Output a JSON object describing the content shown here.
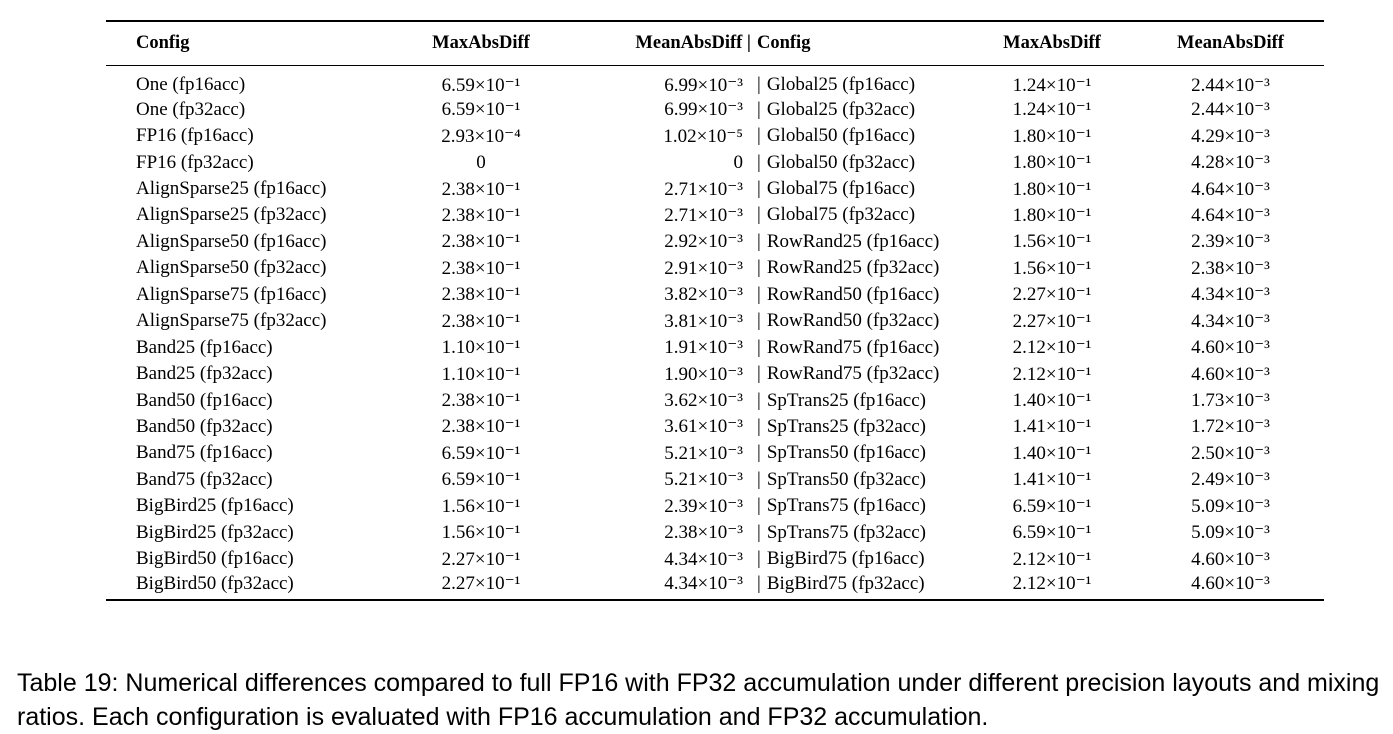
{
  "table": {
    "headers": [
      "Config",
      "MaxAbsDiff",
      "MeanAbsDiff",
      "Config",
      "MaxAbsDiff",
      "MeanAbsDiff"
    ],
    "separator": "|",
    "rows": [
      [
        "One (fp16acc)",
        "6.59×10⁻¹",
        "6.99×10⁻³",
        "Global25 (fp16acc)",
        "1.24×10⁻¹",
        "2.44×10⁻³"
      ],
      [
        "One (fp32acc)",
        "6.59×10⁻¹",
        "6.99×10⁻³",
        "Global25 (fp32acc)",
        "1.24×10⁻¹",
        "2.44×10⁻³"
      ],
      [
        "FP16 (fp16acc)",
        "2.93×10⁻⁴",
        "1.02×10⁻⁵",
        "Global50 (fp16acc)",
        "1.80×10⁻¹",
        "4.29×10⁻³"
      ],
      [
        "FP16 (fp32acc)",
        "0",
        "0",
        "Global50 (fp32acc)",
        "1.80×10⁻¹",
        "4.28×10⁻³"
      ],
      [
        "AlignSparse25 (fp16acc)",
        "2.38×10⁻¹",
        "2.71×10⁻³",
        "Global75 (fp16acc)",
        "1.80×10⁻¹",
        "4.64×10⁻³"
      ],
      [
        "AlignSparse25 (fp32acc)",
        "2.38×10⁻¹",
        "2.71×10⁻³",
        "Global75 (fp32acc)",
        "1.80×10⁻¹",
        "4.64×10⁻³"
      ],
      [
        "AlignSparse50 (fp16acc)",
        "2.38×10⁻¹",
        "2.92×10⁻³",
        "RowRand25 (fp16acc)",
        "1.56×10⁻¹",
        "2.39×10⁻³"
      ],
      [
        "AlignSparse50 (fp32acc)",
        "2.38×10⁻¹",
        "2.91×10⁻³",
        "RowRand25 (fp32acc)",
        "1.56×10⁻¹",
        "2.38×10⁻³"
      ],
      [
        "AlignSparse75 (fp16acc)",
        "2.38×10⁻¹",
        "3.82×10⁻³",
        "RowRand50 (fp16acc)",
        "2.27×10⁻¹",
        "4.34×10⁻³"
      ],
      [
        "AlignSparse75 (fp32acc)",
        "2.38×10⁻¹",
        "3.81×10⁻³",
        "RowRand50 (fp32acc)",
        "2.27×10⁻¹",
        "4.34×10⁻³"
      ],
      [
        "Band25 (fp16acc)",
        "1.10×10⁻¹",
        "1.91×10⁻³",
        "RowRand75 (fp16acc)",
        "2.12×10⁻¹",
        "4.60×10⁻³"
      ],
      [
        "Band25 (fp32acc)",
        "1.10×10⁻¹",
        "1.90×10⁻³",
        "RowRand75 (fp32acc)",
        "2.12×10⁻¹",
        "4.60×10⁻³"
      ],
      [
        "Band50 (fp16acc)",
        "2.38×10⁻¹",
        "3.62×10⁻³",
        "SpTrans25 (fp16acc)",
        "1.40×10⁻¹",
        "1.73×10⁻³"
      ],
      [
        "Band50 (fp32acc)",
        "2.38×10⁻¹",
        "3.61×10⁻³",
        "SpTrans25 (fp32acc)",
        "1.41×10⁻¹",
        "1.72×10⁻³"
      ],
      [
        "Band75 (fp16acc)",
        "6.59×10⁻¹",
        "5.21×10⁻³",
        "SpTrans50 (fp16acc)",
        "1.40×10⁻¹",
        "2.50×10⁻³"
      ],
      [
        "Band75 (fp32acc)",
        "6.59×10⁻¹",
        "5.21×10⁻³",
        "SpTrans50 (fp32acc)",
        "1.41×10⁻¹",
        "2.49×10⁻³"
      ],
      [
        "BigBird25 (fp16acc)",
        "1.56×10⁻¹",
        "2.39×10⁻³",
        "SpTrans75 (fp16acc)",
        "6.59×10⁻¹",
        "5.09×10⁻³"
      ],
      [
        "BigBird25 (fp32acc)",
        "1.56×10⁻¹",
        "2.38×10⁻³",
        "SpTrans75 (fp32acc)",
        "6.59×10⁻¹",
        "5.09×10⁻³"
      ],
      [
        "BigBird50 (fp16acc)",
        "2.27×10⁻¹",
        "4.34×10⁻³",
        "BigBird75 (fp16acc)",
        "2.12×10⁻¹",
        "4.60×10⁻³"
      ],
      [
        "BigBird50 (fp32acc)",
        "2.27×10⁻¹",
        "4.34×10⁻³",
        "BigBird75 (fp32acc)",
        "2.12×10⁻¹",
        "4.60×10⁻³"
      ]
    ]
  },
  "caption": "Table 19: Numerical differences compared to full FP16 with FP32 accumulation under different precision layouts and mixing ratios. Each configuration is evaluated with FP16 accumulation and FP32 accumulation."
}
